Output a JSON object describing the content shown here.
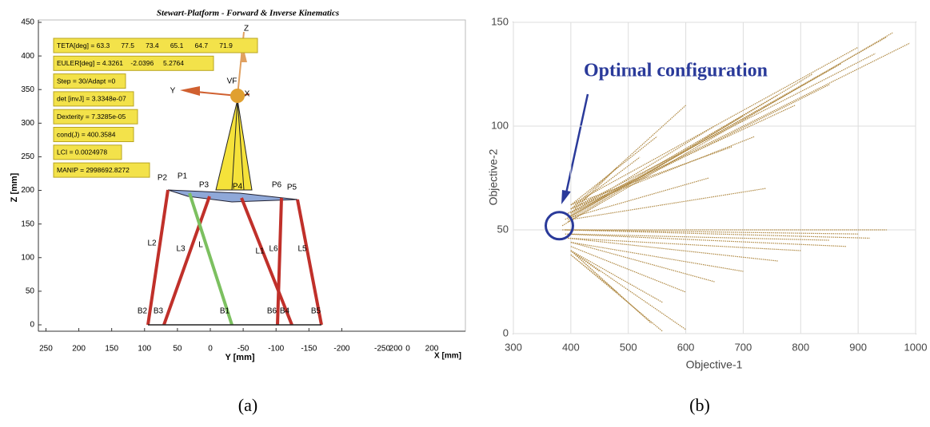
{
  "chart_data": [
    {
      "type": "kinematics",
      "title": "Stewart-Platform - Forward & Inverse Kinematics",
      "xlabel": "Y [mm]",
      "ylabel": "Z [mm]",
      "x2label": "X [mm]",
      "xlim": [
        261.5,
        -388
      ],
      "xticks": [
        250,
        200,
        150,
        100,
        50,
        0,
        -50,
        -100,
        -150,
        -200
      ],
      "x2_labels": [
        "-250",
        "200",
        "0",
        "200"
      ],
      "ylim": [
        0,
        450
      ],
      "yticks": [
        0,
        50,
        100,
        150,
        200,
        250,
        300,
        350,
        400,
        450
      ],
      "info_boxes": [
        "TETA[deg] = 63.3      77.5      73.4      65.1      64.7      71.9",
        "EULER[deg] = 4.3261    -2.0396     5.2764",
        "Step = 30/Adapt =0",
        "det [invJ] = 3.3348e-07",
        "Dexterity = 7.3285e-05",
        "cond(J) = 400.3584",
        "LCI = 0.0024978",
        "MANIP = 2998692.8272"
      ],
      "point_labels": [
        "P2",
        "P1",
        "P3",
        "P4",
        "P6",
        "P5",
        "L2",
        "L3",
        "L",
        "L1",
        "L6",
        "L5",
        "B2",
        "B3",
        "B1",
        "B6",
        "B4",
        "B5",
        "VF",
        "X",
        "Y",
        "Z"
      ],
      "caption": "(a)"
    },
    {
      "type": "fan",
      "xlabel": "Objective-1",
      "ylabel": "Objective-2",
      "annotation": "Optimal configuration",
      "optimum": {
        "x": 380,
        "y": 52
      },
      "color": "#b08a45",
      "grid": true,
      "xlim": [
        300,
        1000
      ],
      "xticks": [
        300,
        400,
        500,
        600,
        700,
        800,
        900,
        1000
      ],
      "ylim": [
        0,
        150
      ],
      "yticks": [
        0,
        50,
        100,
        150
      ],
      "series": [
        {
          "x": [
            385,
            960
          ],
          "values": [
            52,
            145
          ]
        },
        {
          "x": [
            390,
            950
          ],
          "values": [
            55,
            143
          ]
        },
        {
          "x": [
            395,
            990
          ],
          "values": [
            58,
            140
          ]
        },
        {
          "x": [
            400,
            930
          ],
          "values": [
            60,
            135
          ]
        },
        {
          "x": [
            400,
            900
          ],
          "values": [
            62,
            138
          ]
        },
        {
          "x": [
            395,
            870
          ],
          "values": [
            56,
            130
          ]
        },
        {
          "x": [
            400,
            850
          ],
          "values": [
            58,
            120
          ]
        },
        {
          "x": [
            395,
            820
          ],
          "values": [
            54,
            125
          ]
        },
        {
          "x": [
            400,
            790
          ],
          "values": [
            60,
            110
          ]
        },
        {
          "x": [
            400,
            760
          ],
          "values": [
            57,
            115
          ]
        },
        {
          "x": [
            400,
            720
          ],
          "values": [
            60,
            95
          ]
        },
        {
          "x": [
            395,
            700
          ],
          "values": [
            55,
            105
          ]
        },
        {
          "x": [
            400,
            680
          ],
          "values": [
            62,
            90
          ]
        },
        {
          "x": [
            400,
            650
          ],
          "values": [
            58,
            100
          ]
        },
        {
          "x": [
            400,
            600
          ],
          "values": [
            60,
            110
          ]
        },
        {
          "x": [
            400,
            550
          ],
          "values": [
            62,
            95
          ]
        },
        {
          "x": [
            400,
            520
          ],
          "values": [
            60,
            85
          ]
        },
        {
          "x": [
            400,
            480
          ],
          "values": [
            58,
            80
          ]
        },
        {
          "x": [
            400,
            740
          ],
          "values": [
            55,
            70
          ]
        },
        {
          "x": [
            400,
            640
          ],
          "values": [
            56,
            75
          ]
        },
        {
          "x": [
            385,
            950
          ],
          "values": [
            50,
            50
          ]
        },
        {
          "x": [
            390,
            920
          ],
          "values": [
            50,
            46
          ]
        },
        {
          "x": [
            390,
            900
          ],
          "values": [
            50,
            48
          ]
        },
        {
          "x": [
            390,
            880
          ],
          "values": [
            48,
            42
          ]
        },
        {
          "x": [
            395,
            850
          ],
          "values": [
            48,
            45
          ]
        },
        {
          "x": [
            395,
            800
          ],
          "values": [
            46,
            40
          ]
        },
        {
          "x": [
            395,
            760
          ],
          "values": [
            46,
            35
          ]
        },
        {
          "x": [
            400,
            700
          ],
          "values": [
            44,
            30
          ]
        },
        {
          "x": [
            400,
            650
          ],
          "values": [
            44,
            25
          ]
        },
        {
          "x": [
            400,
            600
          ],
          "values": [
            42,
            20
          ]
        },
        {
          "x": [
            400,
            600
          ],
          "values": [
            40,
            2
          ]
        },
        {
          "x": [
            400,
            560
          ],
          "values": [
            40,
            15
          ]
        },
        {
          "x": [
            400,
            560
          ],
          "values": [
            38,
            1
          ]
        },
        {
          "x": [
            400,
            540
          ],
          "values": [
            40,
            5
          ]
        },
        {
          "x": [
            400,
            520
          ],
          "values": [
            40,
            10
          ]
        },
        {
          "x": [
            400,
            480
          ],
          "values": [
            38,
            20
          ]
        },
        {
          "x": [
            400,
            450
          ],
          "values": [
            40,
            30
          ]
        }
      ],
      "caption": "(b)"
    }
  ]
}
